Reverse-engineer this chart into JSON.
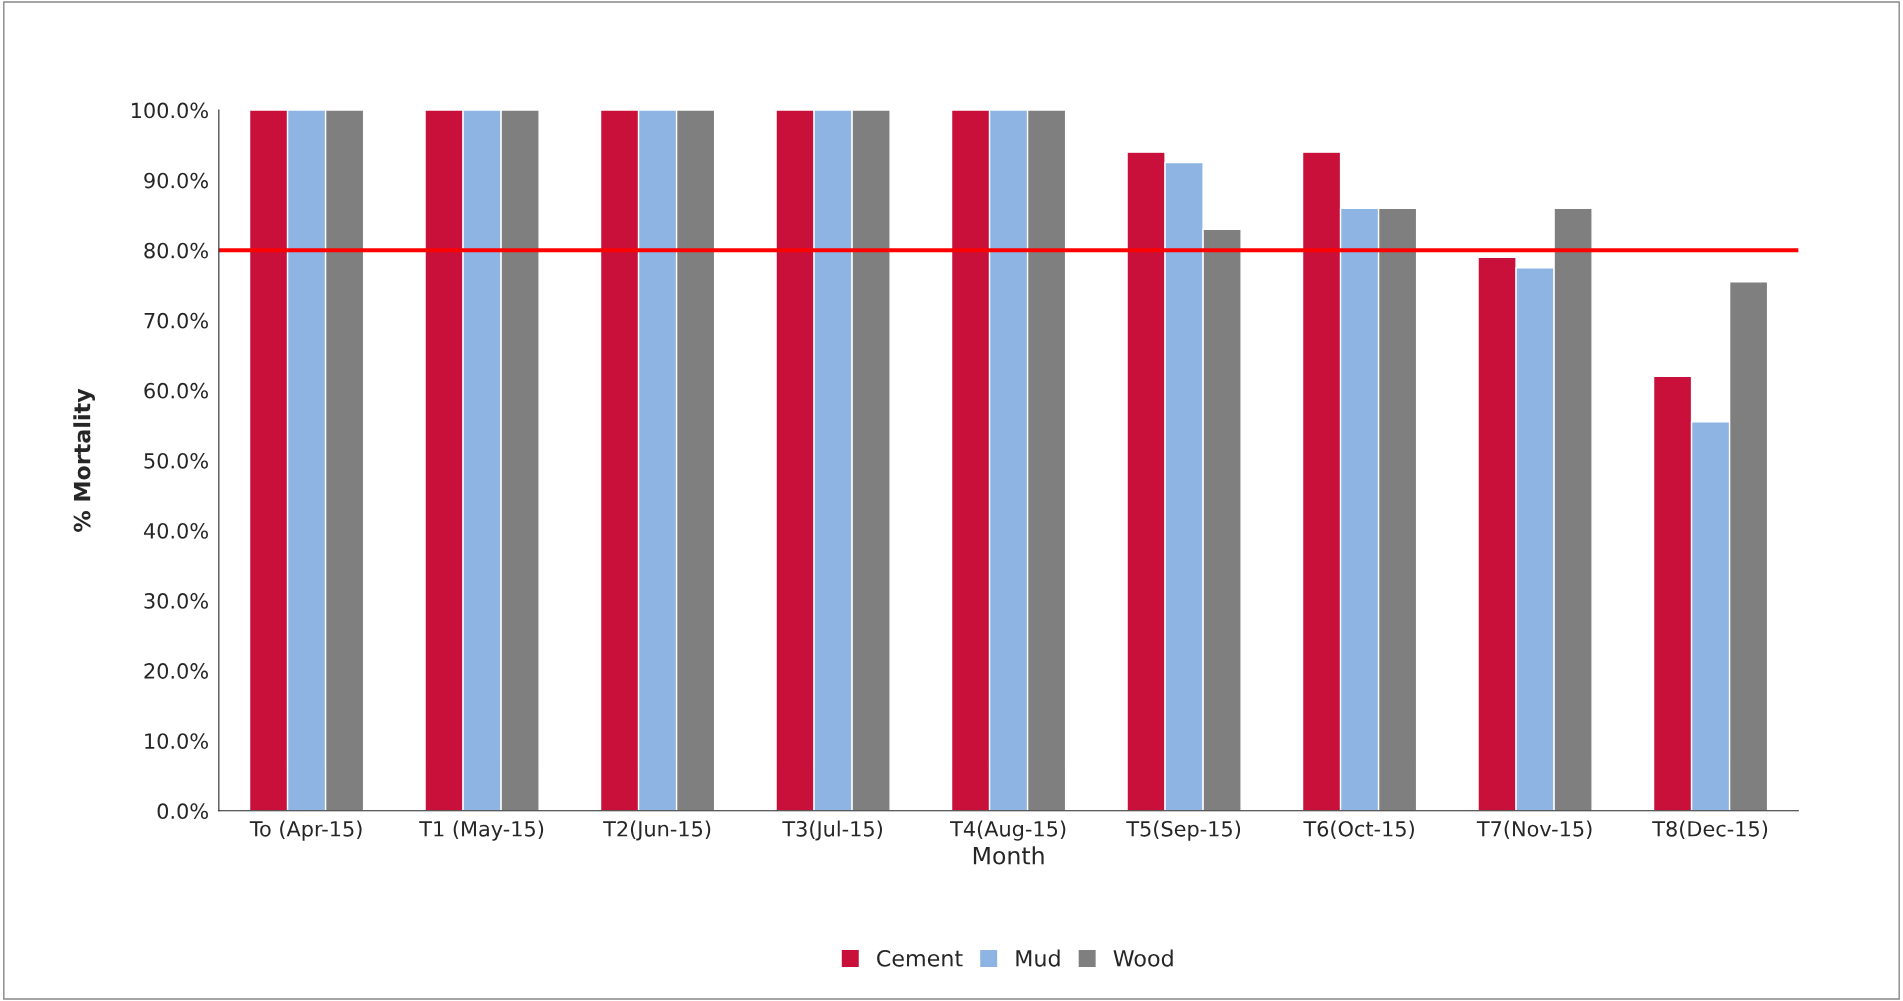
{
  "chart_data": {
    "type": "bar",
    "xlabel": "Month",
    "ylabel": "% Mortality",
    "categories": [
      "To (Apr-15)",
      "T1 (May-15)",
      "T2(Jun-15)",
      "T3(Jul-15)",
      "T4(Aug-15)",
      "T5(Sep-15)",
      "T6(Oct-15)",
      "T7(Nov-15)",
      "T8(Dec-15)"
    ],
    "series": [
      {
        "name": "Cement",
        "color": "#c8103a",
        "values": [
          100,
          100,
          100,
          100,
          100,
          94,
          94,
          79,
          62
        ]
      },
      {
        "name": "Mud",
        "color": "#8db4e2",
        "values": [
          100,
          100,
          100,
          100,
          100,
          92.5,
          86,
          77.5,
          55.5
        ]
      },
      {
        "name": "Wood",
        "color": "#7f7f7f",
        "values": [
          100,
          100,
          100,
          100,
          100,
          83,
          86,
          86,
          75.5
        ]
      }
    ],
    "ylim": [
      0,
      100
    ],
    "yticks": [
      {
        "value": 0,
        "label": "0.0%"
      },
      {
        "value": 10,
        "label": "10.0%"
      },
      {
        "value": 20,
        "label": "20.0%"
      },
      {
        "value": 30,
        "label": "30.0%"
      },
      {
        "value": 40,
        "label": "40.0%"
      },
      {
        "value": 50,
        "label": "50.0%"
      },
      {
        "value": 60,
        "label": "60.0%"
      },
      {
        "value": 70,
        "label": "70.0%"
      },
      {
        "value": 80,
        "label": "80.0%"
      },
      {
        "value": 90,
        "label": "90.0%"
      },
      {
        "value": 100,
        "label": "100.0%"
      }
    ],
    "ref_lines": [
      {
        "axis": "y",
        "value": 80,
        "color": "#ff0000"
      }
    ],
    "legend": "bottom"
  }
}
